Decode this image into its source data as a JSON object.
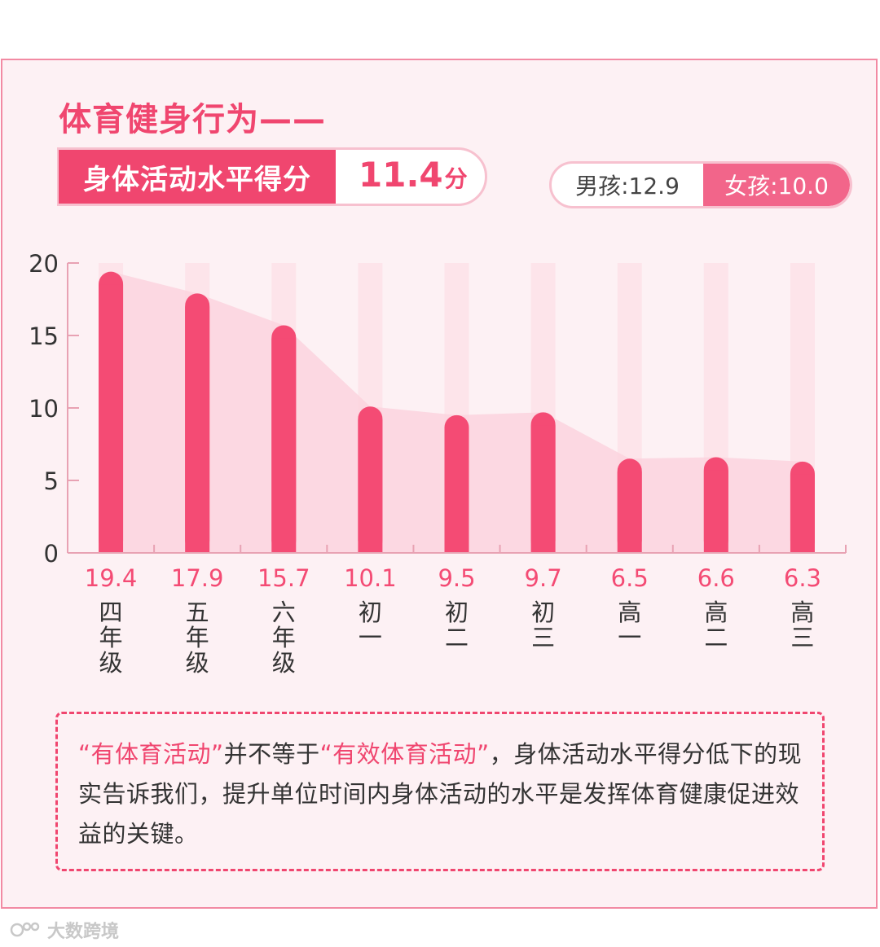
{
  "header": {
    "title": "体育健身行为——",
    "score_label": "身体活动水平得分",
    "score_value": "11.4",
    "score_unit": "分",
    "boys": "男孩:12.9",
    "girls": "女孩:10.0"
  },
  "colors": {
    "accent": "#f0466f",
    "bar": "#f44b74",
    "area": "#fbd4de",
    "track": "#fde4ea",
    "axis": "#e8a2b3"
  },
  "chart_data": {
    "type": "bar",
    "title": "身体活动水平得分",
    "categories": [
      "四年级",
      "五年级",
      "六年级",
      "初一",
      "初二",
      "初三",
      "高一",
      "高二",
      "高三"
    ],
    "values": [
      19.4,
      17.9,
      15.7,
      10.1,
      9.5,
      9.7,
      6.5,
      6.6,
      6.3
    ],
    "value_labels": [
      "19.4",
      "17.9",
      "15.7",
      "10.1",
      "9.5",
      "9.7",
      "6.5",
      "6.6",
      "6.3"
    ],
    "ylim": [
      0,
      20
    ],
    "yticks": [
      0,
      5,
      10,
      15,
      20
    ],
    "xlabel": "",
    "ylabel": "",
    "overlay": "area-trend"
  },
  "note": {
    "quote1": "“有体育活动”",
    "mid": "并不等于",
    "quote2": "“有效体育活动”",
    "rest": "，身体活动水平得分低下的现实告诉我们，提升单位时间内身体活动的水平是发挥体育健康促进效益的关键。"
  },
  "watermark": {
    "text": "大数跨境",
    "icon": "brand-logo-icon"
  }
}
